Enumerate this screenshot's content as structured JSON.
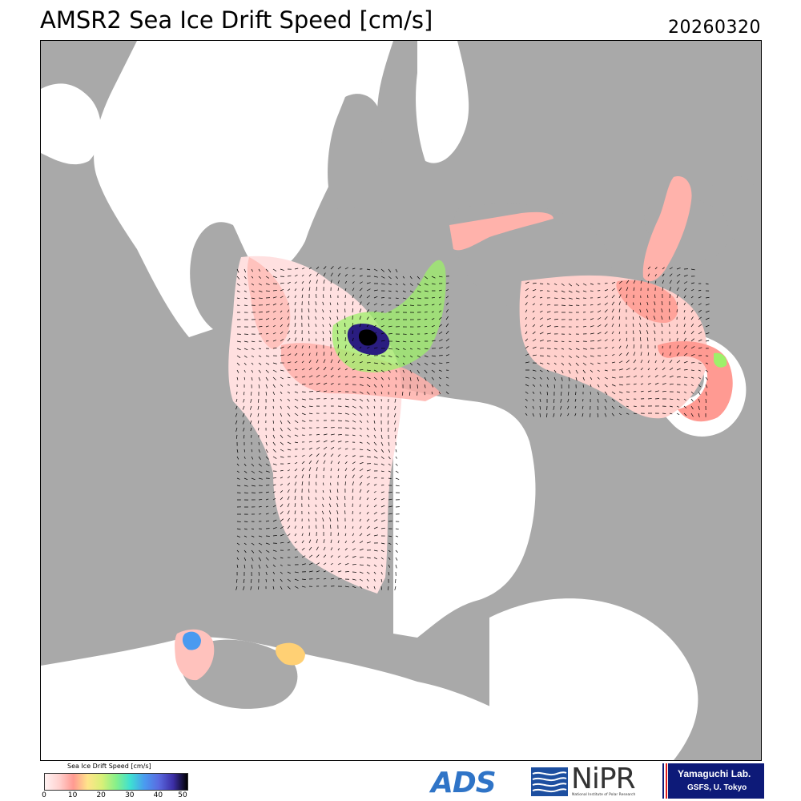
{
  "header": {
    "title": "AMSR2 Sea Ice Drift Speed [cm/s]",
    "date": "20260320"
  },
  "colorbar": {
    "title": "Sea Ice Drift Speed [cm/s]",
    "ticks": [
      "0",
      "10",
      "20",
      "30",
      "40",
      "50"
    ],
    "range": [
      0,
      50
    ],
    "colors": [
      "#fff2f2",
      "#ff9a92",
      "#ffe48a",
      "#86f08a",
      "#4a9af0",
      "#3c2ea6",
      "#000000"
    ]
  },
  "map": {
    "land_color": "#a9a9a9",
    "water_color": "#ffffff",
    "low_speed_color": "#ffd6d6",
    "high_speed_color": "#1a1060"
  },
  "logos": {
    "ads": "ADS",
    "nipr": "NiPR",
    "nipr_sub": "National Institute of Polar Research",
    "lab_line1": "Yamaguchi Lab.",
    "lab_line2": "GSFS, U. Tokyo"
  }
}
